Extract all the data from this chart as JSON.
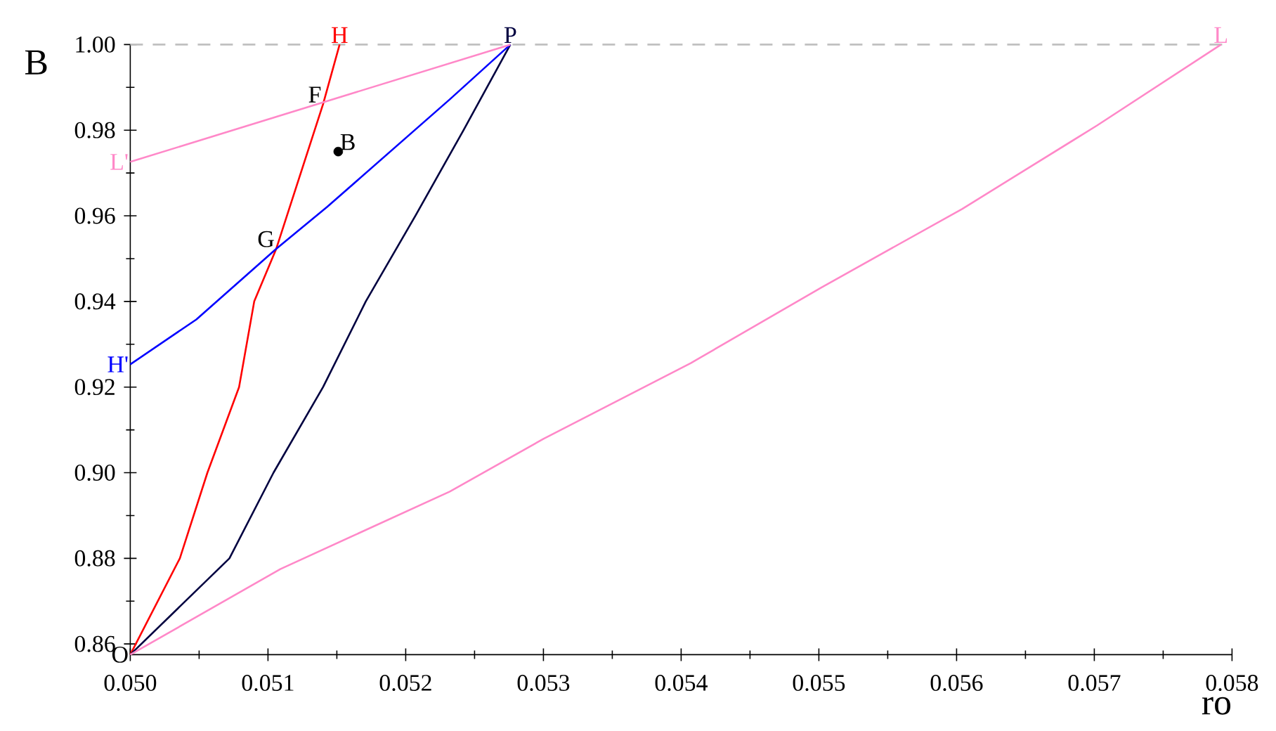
{
  "chart_data": {
    "type": "line",
    "xlabel": "ro",
    "ylabel": "B",
    "xlim": [
      0.05,
      0.058
    ],
    "ylim": [
      0.8575,
      1.0
    ],
    "xticks": [
      {
        "value": 0.05,
        "label": "0.050"
      },
      {
        "value": 0.0505,
        "label": null
      },
      {
        "value": 0.051,
        "label": "0.051"
      },
      {
        "value": 0.0515,
        "label": null
      },
      {
        "value": 0.052,
        "label": "0.052"
      },
      {
        "value": 0.0525,
        "label": null
      },
      {
        "value": 0.053,
        "label": "0.053"
      },
      {
        "value": 0.0535,
        "label": null
      },
      {
        "value": 0.054,
        "label": "0.054"
      },
      {
        "value": 0.0545,
        "label": null
      },
      {
        "value": 0.055,
        "label": "0.055"
      },
      {
        "value": 0.0555,
        "label": null
      },
      {
        "value": 0.056,
        "label": "0.056"
      },
      {
        "value": 0.0565,
        "label": null
      },
      {
        "value": 0.057,
        "label": "0.057"
      },
      {
        "value": 0.0575,
        "label": null
      },
      {
        "value": 0.058,
        "label": "0.058"
      }
    ],
    "yticks": [
      0.86,
      {
        "value": 0.87,
        "label": null
      },
      0.88,
      {
        "value": 0.89,
        "label": null
      },
      {
        "value": 0.9,
        "label": "0.90"
      },
      {
        "value": 0.91,
        "label": null
      },
      0.92,
      {
        "value": 0.93,
        "label": null
      },
      0.94,
      {
        "value": 0.95,
        "label": null
      },
      0.96,
      {
        "value": 0.97,
        "label": null
      },
      0.98,
      {
        "value": 0.99,
        "label": null
      },
      {
        "value": 1.0,
        "label": "1.00"
      }
    ],
    "grid": false,
    "line_style": "solid",
    "series": [
      {
        "name": "H",
        "color": "#ff0000",
        "x": [
          0.05,
          0.05036,
          0.05056,
          0.05079,
          0.0509,
          0.05106,
          0.0514,
          0.05152
        ],
        "values": [
          0.8575,
          0.88,
          0.9,
          0.92,
          0.94,
          0.9523,
          0.9861,
          1.0
        ]
      },
      {
        "name": "P",
        "color": "#000040",
        "x": [
          0.05,
          0.05072,
          0.05104,
          0.0514,
          0.05171,
          0.05207,
          0.05242,
          0.05276
        ],
        "values": [
          0.8575,
          0.88,
          0.9,
          0.92,
          0.94,
          0.96,
          0.98,
          1.0
        ]
      },
      {
        "name": "L",
        "color": "#ff88c8",
        "x": [
          0.05,
          0.05109,
          0.05232,
          0.053,
          0.05407,
          0.05502,
          0.05604,
          0.05702,
          0.05792
        ],
        "values": [
          0.8575,
          0.8775,
          0.8956,
          0.9079,
          0.9256,
          0.9433,
          0.9616,
          0.9811,
          1.0
        ]
      },
      {
        "name": "H'",
        "color": "#0000ff",
        "x": [
          0.05,
          0.05048,
          0.05106,
          0.05143,
          0.05232,
          0.05276
        ],
        "values": [
          0.9253,
          0.9358,
          0.9523,
          0.9621,
          0.9872,
          1.0
        ]
      },
      {
        "name": "L'",
        "color": "#ff88c8",
        "x": [
          0.05,
          0.05276
        ],
        "values": [
          0.9726,
          1.0
        ]
      },
      {
        "name": "B",
        "color": "#000000",
        "type": "scatter",
        "x": [
          0.05151
        ],
        "values": [
          0.975
        ]
      }
    ],
    "ref_lines": [
      {
        "axis": "y",
        "value": 1.0,
        "color": "#c0c0c0",
        "line_style": "dashed"
      }
    ],
    "annotations": [
      {
        "text": "F",
        "x": 0.0514,
        "y": 0.9861
      },
      {
        "text": "G",
        "x": 0.05106,
        "y": 0.9523
      },
      {
        "text": "O",
        "x": 0.05,
        "y": 0.8575
      }
    ]
  }
}
